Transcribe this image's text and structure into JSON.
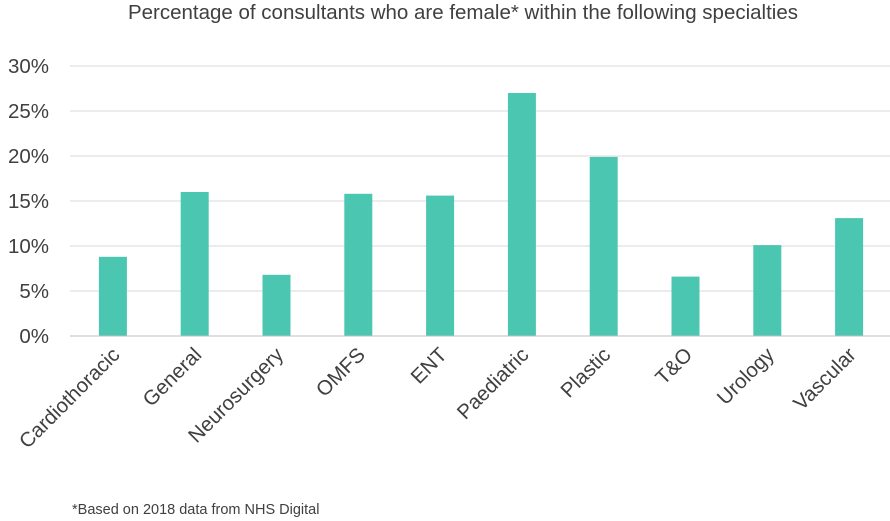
{
  "chart_data": {
    "type": "bar",
    "title": "Percentage of consultants who are female* within the following specialties",
    "categories": [
      "Cardiothoracic",
      "General",
      "Neurosurgery",
      "OMFS",
      "ENT",
      "Paediatric",
      "Plastic",
      "T&O",
      "Urology",
      "Vascular"
    ],
    "series": [
      {
        "values": [
          8.8,
          16.0,
          6.8,
          15.8,
          15.6,
          27.0,
          19.9,
          6.6,
          10.1,
          13.1
        ],
        "color": "#4bc6b1"
      }
    ],
    "xlabel": "",
    "ylabel": "",
    "ylim": [
      0,
      30
    ],
    "yticks": [
      "0%",
      "5%",
      "10%",
      "15%",
      "20%",
      "25%",
      "30%"
    ],
    "grid": true,
    "legend": "none"
  },
  "footnote": "*Based on 2018 data from NHS Digital"
}
